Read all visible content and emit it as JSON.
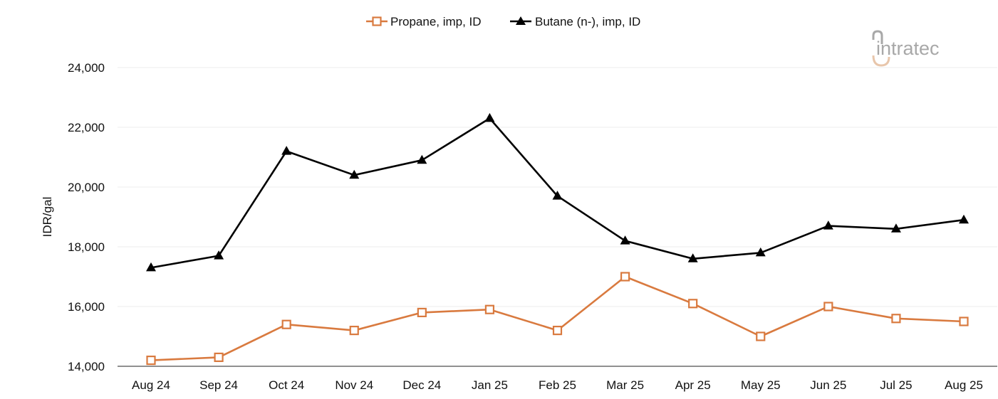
{
  "logo": {
    "text": "intratec",
    "color": "#a8a8a8",
    "accent": "#e8c6ab"
  },
  "chart_data": {
    "type": "line",
    "title": "",
    "xlabel": "",
    "ylabel": "IDR/gal",
    "categories": [
      "Aug 24",
      "Sep 24",
      "Oct 24",
      "Nov 24",
      "Dec 24",
      "Jan 25",
      "Feb 25",
      "Mar 25",
      "Apr 25",
      "May 25",
      "Jun 25",
      "Jul 25",
      "Aug 25"
    ],
    "ylim": [
      14000,
      24000
    ],
    "yticks": [
      14000,
      16000,
      18000,
      20000,
      22000,
      24000
    ],
    "ytick_labels": [
      "14,000",
      "16,000",
      "18,000",
      "20,000",
      "22,000",
      "24,000"
    ],
    "grid": true,
    "legend_position": "top-center",
    "series": [
      {
        "name": "Propane, imp, ID",
        "color": "#d97a3f",
        "marker": "square-open",
        "values": [
          14200,
          14300,
          15400,
          15200,
          15800,
          15900,
          15200,
          17000,
          16100,
          15000,
          16000,
          15600,
          15500
        ]
      },
      {
        "name": "Butane (n-), imp, ID",
        "color": "#000000",
        "marker": "triangle-filled",
        "values": [
          17300,
          17700,
          21200,
          20400,
          20900,
          22300,
          19700,
          18200,
          17600,
          17800,
          18700,
          18600,
          18900
        ]
      }
    ]
  }
}
